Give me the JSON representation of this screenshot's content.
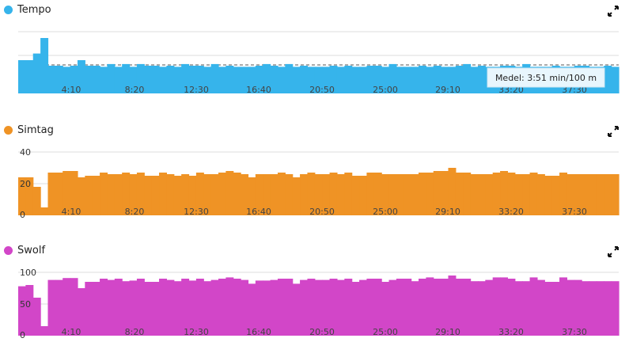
{
  "charts": [
    {
      "name": "Tempo",
      "color": "#36b4eb",
      "icon": "expand-icon",
      "y_labels": [],
      "x_ticks": [
        "4:10",
        "8:20",
        "12:30",
        "16:40",
        "20:50",
        "25:00",
        "29:10",
        "33:20",
        "37:30"
      ],
      "average_label": "Medel: 3:51 min/100 m"
    },
    {
      "name": "Simtag",
      "color": "#ef9325",
      "icon": "expand-icon",
      "y_labels": [
        "40",
        "20",
        "0"
      ],
      "x_ticks": [
        "4:10",
        "8:20",
        "12:30",
        "16:40",
        "20:50",
        "25:00",
        "29:10",
        "33:20",
        "37:30"
      ]
    },
    {
      "name": "Swolf",
      "color": "#d246c8",
      "icon": "expand-icon",
      "y_labels": [
        "100",
        "50",
        "0"
      ],
      "x_ticks": [
        "4:10",
        "8:20",
        "12:30",
        "16:40",
        "20:50",
        "25:00",
        "29:10",
        "33:20",
        "37:30"
      ]
    }
  ],
  "chart_data": [
    {
      "type": "bar",
      "title": "Tempo",
      "x_label": "",
      "y_label": "",
      "x_range": [
        "0:00",
        "40:00"
      ],
      "average": "3:51 min/100 m",
      "values": [
        0.6,
        0.6,
        0.72,
        1.0,
        0.5,
        0.5,
        0.48,
        0.5,
        0.6,
        0.5,
        0.5,
        0.48,
        0.53,
        0.48,
        0.53,
        0.48,
        0.53,
        0.5,
        0.5,
        0.48,
        0.5,
        0.48,
        0.53,
        0.5,
        0.5,
        0.48,
        0.53,
        0.48,
        0.5,
        0.48,
        0.48,
        0.48,
        0.5,
        0.53,
        0.5,
        0.48,
        0.53,
        0.48,
        0.5,
        0.48,
        0.48,
        0.48,
        0.5,
        0.48,
        0.5,
        0.48,
        0.48,
        0.5,
        0.5,
        0.48,
        0.53,
        0.48,
        0.48,
        0.48,
        0.5,
        0.48,
        0.5,
        0.48,
        0.48,
        0.5,
        0.53,
        0.48,
        0.5,
        0.48,
        0.48,
        0.5,
        0.5,
        0.48,
        0.53,
        0.48,
        0.48,
        0.48,
        0.5,
        0.48,
        0.48,
        0.5,
        0.5,
        0.48,
        0.48,
        0.5,
        0.48
      ]
    },
    {
      "type": "bar",
      "title": "Simtag",
      "x_label": "",
      "y_label": "",
      "x_range": [
        "0:00",
        "40:00"
      ],
      "ylim": [
        0,
        40
      ],
      "values": [
        24,
        24,
        18,
        5,
        27,
        27,
        28,
        28,
        24,
        25,
        25,
        27,
        26,
        26,
        27,
        26,
        27,
        25,
        25,
        27,
        26,
        25,
        26,
        25,
        27,
        26,
        26,
        27,
        28,
        27,
        26,
        24,
        26,
        26,
        26,
        27,
        26,
        24,
        26,
        27,
        26,
        26,
        27,
        26,
        27,
        25,
        25,
        27,
        27,
        26,
        26,
        26,
        26,
        26,
        27,
        27,
        28,
        28,
        30,
        27,
        27,
        26,
        26,
        26,
        27,
        28,
        27,
        26,
        26,
        27,
        26,
        25,
        25,
        27,
        26,
        26,
        26,
        26,
        26,
        26,
        26
      ]
    },
    {
      "type": "bar",
      "title": "Swolf",
      "x_label": "",
      "y_label": "",
      "x_range": [
        "0:00",
        "40:00"
      ],
      "ylim": [
        0,
        100
      ],
      "values": [
        78,
        80,
        60,
        15,
        88,
        88,
        91,
        91,
        75,
        85,
        85,
        90,
        88,
        90,
        86,
        87,
        90,
        85,
        85,
        90,
        88,
        86,
        90,
        87,
        90,
        86,
        88,
        90,
        92,
        90,
        88,
        82,
        87,
        87,
        88,
        90,
        90,
        82,
        88,
        90,
        88,
        88,
        90,
        88,
        90,
        85,
        88,
        90,
        90,
        85,
        88,
        90,
        90,
        86,
        90,
        92,
        90,
        90,
        95,
        90,
        90,
        86,
        86,
        88,
        92,
        92,
        90,
        86,
        86,
        92,
        88,
        85,
        85,
        92,
        88,
        88,
        86,
        86,
        86,
        86,
        86
      ]
    }
  ]
}
